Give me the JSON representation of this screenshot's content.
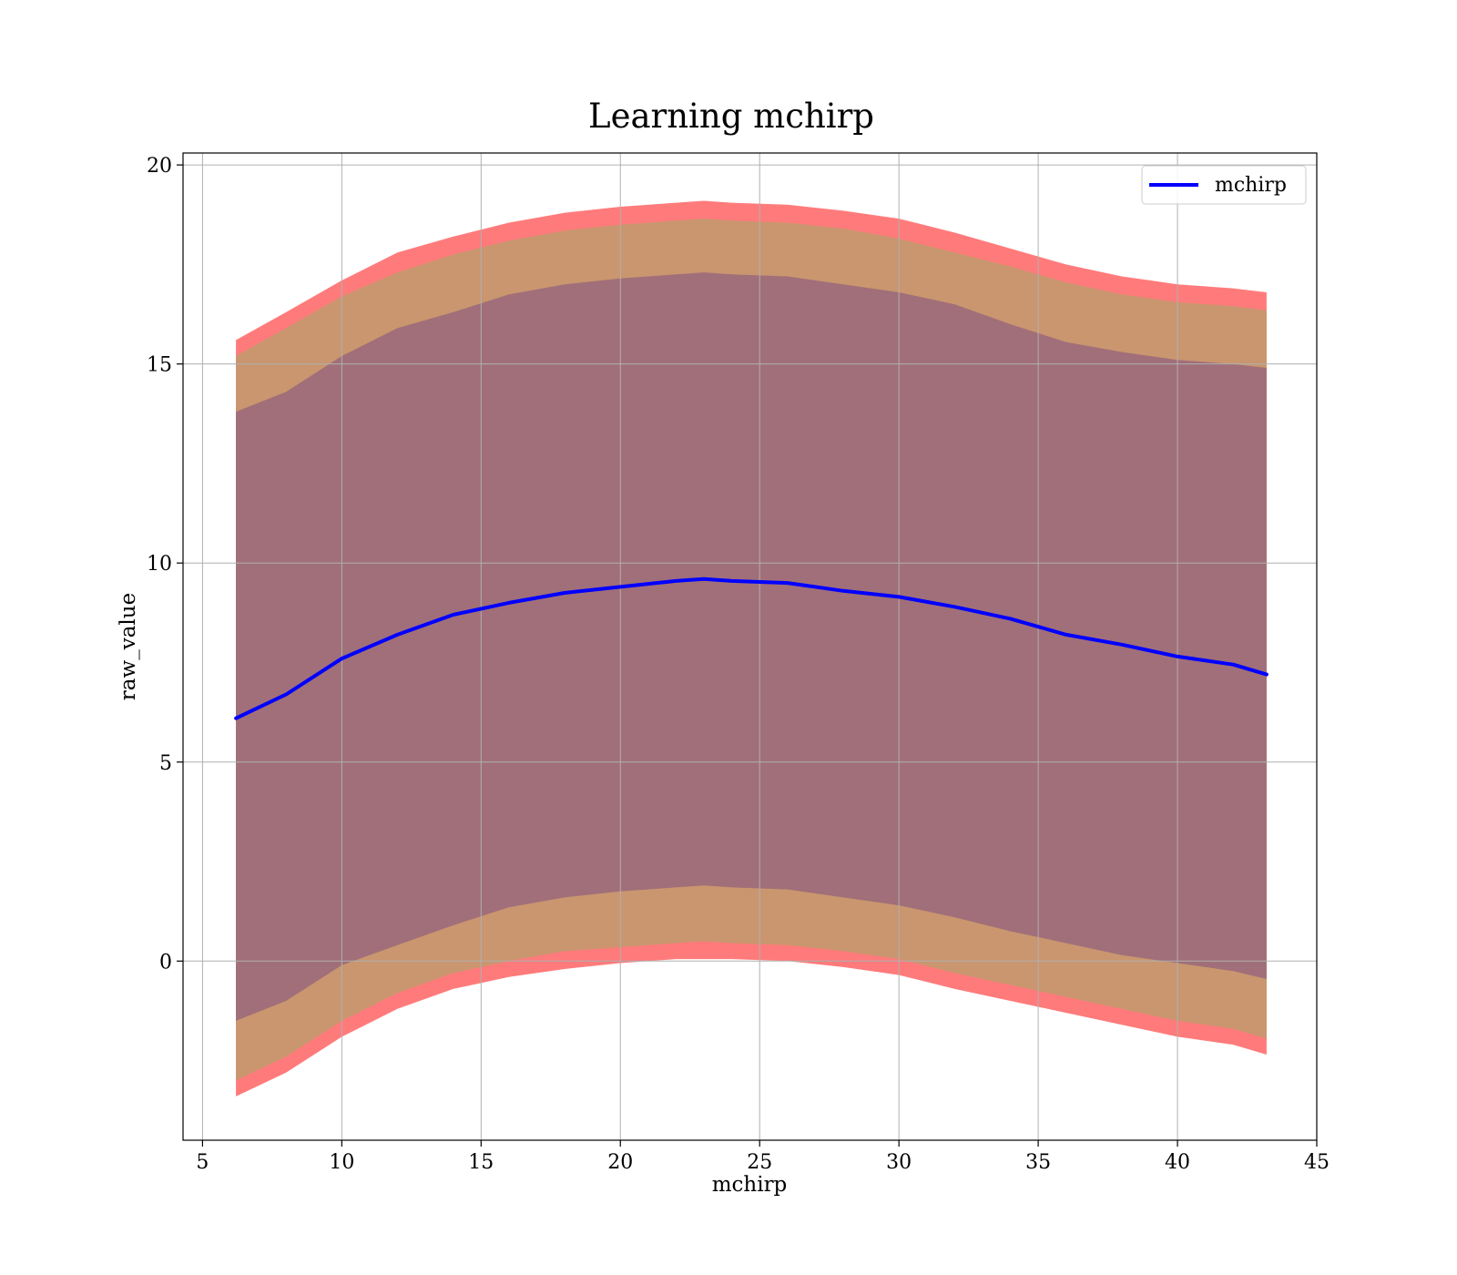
{
  "chart_data": {
    "type": "line",
    "title": "Learning mchirp",
    "xlabel": "mchirp",
    "ylabel": "raw_value",
    "xlim": [
      4.3,
      45
    ],
    "ylim": [
      -4.5,
      20.3
    ],
    "xticks": [
      5,
      10,
      15,
      20,
      25,
      30,
      35,
      40,
      45
    ],
    "yticks": [
      0,
      5,
      10,
      15,
      20
    ],
    "xtick_labels": [
      "5",
      "10",
      "15",
      "20",
      "25",
      "30",
      "35",
      "40",
      "45"
    ],
    "ytick_labels": [
      "0",
      "5",
      "10",
      "15",
      "20"
    ],
    "grid": true,
    "legend_position": "upper right",
    "x": [
      6.2,
      8,
      10,
      12,
      14,
      16,
      18,
      20,
      22,
      23,
      24,
      26,
      28,
      30,
      32,
      34,
      36,
      38,
      40,
      42,
      43.2
    ],
    "series": [
      {
        "name": "mchirp",
        "color": "#0000ff",
        "values": [
          6.1,
          6.7,
          7.6,
          8.2,
          8.7,
          9.0,
          9.25,
          9.4,
          9.55,
          9.6,
          9.55,
          9.5,
          9.3,
          9.15,
          8.9,
          8.6,
          8.2,
          7.95,
          7.65,
          7.45,
          7.2
        ]
      }
    ],
    "bands": [
      {
        "label": "outer",
        "color": "#ff7b7b",
        "lower": [
          -3.4,
          -2.8,
          -1.9,
          -1.2,
          -0.7,
          -0.4,
          -0.2,
          -0.05,
          0.05,
          0.05,
          0.05,
          0.0,
          -0.15,
          -0.35,
          -0.7,
          -1.0,
          -1.3,
          -1.6,
          -1.9,
          -2.1,
          -2.35
        ],
        "upper": [
          15.6,
          16.3,
          17.1,
          17.8,
          18.2,
          18.55,
          18.8,
          18.95,
          19.05,
          19.1,
          19.05,
          19.0,
          18.85,
          18.65,
          18.3,
          17.9,
          17.5,
          17.2,
          17.0,
          16.9,
          16.8
        ]
      },
      {
        "label": "middle",
        "color": "#c9966f",
        "lower": [
          -3.0,
          -2.4,
          -1.5,
          -0.8,
          -0.3,
          0.0,
          0.25,
          0.35,
          0.45,
          0.5,
          0.45,
          0.4,
          0.25,
          0.05,
          -0.3,
          -0.6,
          -0.9,
          -1.2,
          -1.5,
          -1.7,
          -1.95
        ],
        "upper": [
          15.2,
          15.9,
          16.7,
          17.3,
          17.75,
          18.1,
          18.35,
          18.5,
          18.6,
          18.65,
          18.6,
          18.55,
          18.4,
          18.15,
          17.8,
          17.45,
          17.05,
          16.75,
          16.55,
          16.45,
          16.35
        ]
      },
      {
        "label": "inner",
        "color": "#a16f79",
        "lower": [
          -1.5,
          -1.0,
          -0.1,
          0.4,
          0.9,
          1.35,
          1.6,
          1.75,
          1.85,
          1.9,
          1.85,
          1.8,
          1.6,
          1.4,
          1.1,
          0.75,
          0.45,
          0.15,
          -0.05,
          -0.25,
          -0.45
        ],
        "upper": [
          13.8,
          14.3,
          15.2,
          15.9,
          16.3,
          16.75,
          17.0,
          17.15,
          17.25,
          17.3,
          17.25,
          17.2,
          17.0,
          16.8,
          16.5,
          16.0,
          15.55,
          15.3,
          15.1,
          15.0,
          14.9
        ]
      }
    ]
  }
}
